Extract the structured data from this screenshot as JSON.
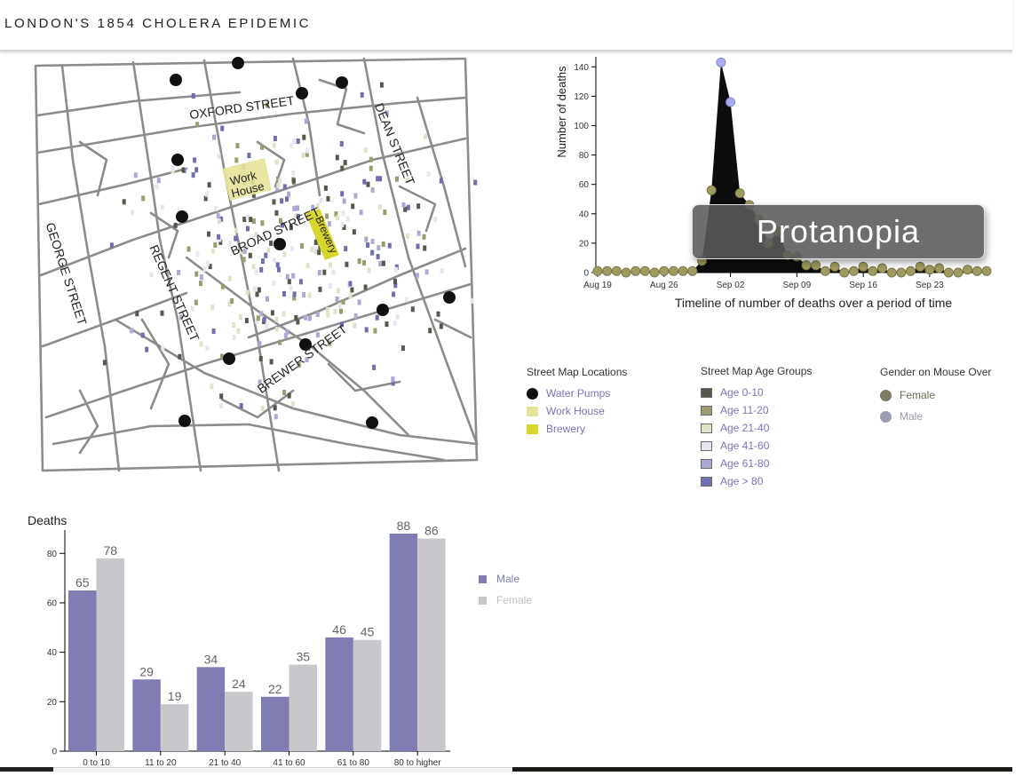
{
  "header": {
    "title": "LONDON'S 1854 CHOLERA EPIDEMIC"
  },
  "map": {
    "streets": [
      "OXFORD STREET",
      "DEAN STREET",
      "GEORGE STREET",
      "REGENT STREET",
      "BROAD STREET",
      "BREWER STREET"
    ],
    "work_house_label_line1": "Work",
    "work_house_label_line2": "House",
    "brewery_label": "Brewery"
  },
  "legends": {
    "locations": {
      "title": "Street Map Locations",
      "items": [
        {
          "label": "Water Pumps",
          "color": "#111111",
          "shape": "circle"
        },
        {
          "label": "Work House",
          "color": "#e6e49a",
          "shape": "square"
        },
        {
          "label": "Brewery",
          "color": "#d7d62a",
          "shape": "square"
        }
      ]
    },
    "age_groups": {
      "title": "Street Map Age Groups",
      "items": [
        {
          "label": "Age 0-10",
          "color": "#55584a"
        },
        {
          "label": "Age 11-20",
          "color": "#9c9c70"
        },
        {
          "label": "Age 21-40",
          "color": "#e2e2c8"
        },
        {
          "label": "Age 41-60",
          "color": "#e6e6f0"
        },
        {
          "label": "Age 61-80",
          "color": "#aaaad4"
        },
        {
          "label": "Age > 80",
          "color": "#6e6eb0"
        }
      ]
    },
    "gender": {
      "title": "Gender on Mouse Over",
      "items": [
        {
          "label": "Female",
          "color": "#7c7c62"
        },
        {
          "label": "Male",
          "color": "#9c9cb2"
        }
      ]
    }
  },
  "overlay": {
    "text": "Protanopia"
  },
  "colors": {
    "male": "#7f7db4",
    "female": "#c8c8cc",
    "timeline_fill": "#0d0d0d",
    "timeline_female": "#9e9a60",
    "timeline_male": "#aaaaee"
  },
  "chart_data": [
    {
      "type": "area",
      "title": "",
      "xlabel": "Timeline of number of deaths over a period of time",
      "ylabel": "Number of deaths",
      "ylim": [
        0,
        145
      ],
      "yticks": [
        0,
        20,
        40,
        60,
        80,
        100,
        120,
        140
      ],
      "xticks": [
        "Aug 19",
        "Aug 26",
        "Sep 02",
        "Sep 09",
        "Sep 16",
        "Sep 23"
      ],
      "x": [
        "Aug 19",
        "Aug 20",
        "Aug 21",
        "Aug 22",
        "Aug 23",
        "Aug 24",
        "Aug 25",
        "Aug 26",
        "Aug 27",
        "Aug 28",
        "Aug 29",
        "Aug 30",
        "Aug 31",
        "Sep 01",
        "Sep 02",
        "Sep 03",
        "Sep 04",
        "Sep 05",
        "Sep 06",
        "Sep 07",
        "Sep 08",
        "Sep 09",
        "Sep 10",
        "Sep 11",
        "Sep 12",
        "Sep 13",
        "Sep 14",
        "Sep 15",
        "Sep 16",
        "Sep 17",
        "Sep 18",
        "Sep 19",
        "Sep 20",
        "Sep 21",
        "Sep 22",
        "Sep 23",
        "Sep 24",
        "Sep 25",
        "Sep 26",
        "Sep 27",
        "Sep 28",
        "Sep 29"
      ],
      "values": [
        1,
        1,
        1,
        0,
        1,
        1,
        0,
        1,
        1,
        1,
        1,
        8,
        56,
        143,
        116,
        54,
        46,
        36,
        20,
        28,
        12,
        11,
        5,
        5,
        1,
        4,
        0,
        1,
        4,
        1,
        3,
        0,
        0,
        1,
        4,
        2,
        3,
        0,
        0,
        2,
        1,
        1
      ],
      "point_gender": [
        "F",
        "F",
        "F",
        "F",
        "F",
        "F",
        "F",
        "F",
        "F",
        "F",
        "F",
        "F",
        "F",
        "M",
        "M",
        "F",
        "F",
        "F",
        "F",
        "F",
        "F",
        "F",
        "F",
        "F",
        "F",
        "F",
        "F",
        "F",
        "F",
        "F",
        "F",
        "F",
        "F",
        "F",
        "F",
        "F",
        "F",
        "F",
        "F",
        "F",
        "F",
        "F"
      ]
    },
    {
      "type": "bar",
      "title": "Deaths",
      "xlabel": "",
      "ylabel": "",
      "ylim": [
        0,
        88
      ],
      "yticks": [
        0,
        20,
        40,
        60,
        80
      ],
      "categories": [
        "0 to 10",
        "11 to 20",
        "21 to 40",
        "41 to 60",
        "61 to 80",
        "80 to higher"
      ],
      "series": [
        {
          "name": "Male",
          "values": [
            65,
            29,
            34,
            22,
            46,
            88
          ]
        },
        {
          "name": "Female",
          "values": [
            78,
            19,
            24,
            35,
            45,
            86
          ]
        }
      ]
    }
  ]
}
